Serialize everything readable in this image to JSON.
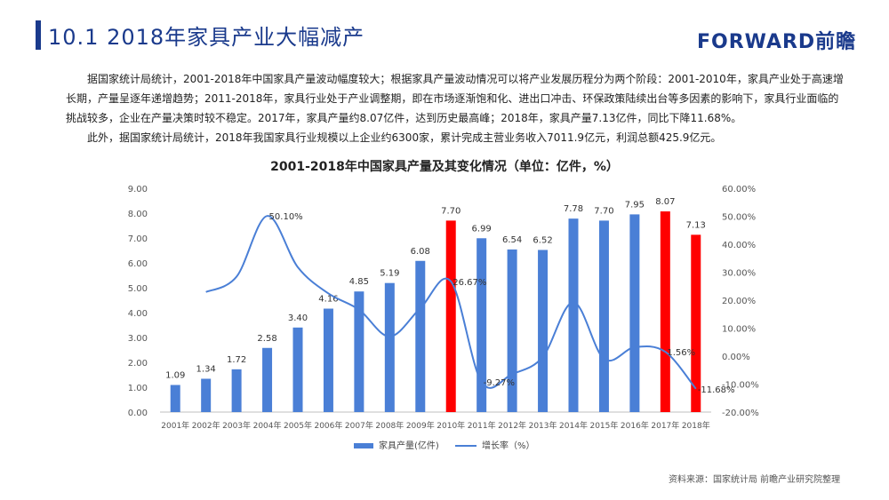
{
  "header": {
    "title": "10.1 2018年家具产业大幅减产",
    "logo": "FORWARD前瞻"
  },
  "intro": {
    "paragraph1": "据国家统计局统计，2001-2018年中国家具产量波动幅度较大；根据家具产量波动情况可以将产业发展历程分为两个阶段：2001-2010年，家具产业处于高速增长期，产量呈逐年递增趋势；2011-2018年，家具行业处于产业调整期，即在市场逐渐饱和化、进出口冲击、环保政策陆续出台等多因素的影响下，家具行业面临的挑战较多，企业在产量决策时较不稳定。2017年，家具产量约8.07亿件，达到历史最高峰；2018年，家具产量7.13亿件，同比下降11.68%。",
    "paragraph2": "此外，据国家统计局统计，2018年我国家具行业规模以上企业约6300家，累计完成主营业务收入7011.9亿元，利润总额425.9亿元。"
  },
  "chart_data": {
    "type": "bar",
    "title": "2001-2018年中国家具产量及其变化情况（单位：亿件，%）",
    "categories": [
      "2001年",
      "2002年",
      "2003年",
      "2004年",
      "2005年",
      "2006年",
      "2007年",
      "2008年",
      "2009年",
      "2010年",
      "2011年",
      "2012年",
      "2013年",
      "2014年",
      "2015年",
      "2016年",
      "2017年",
      "2018年"
    ],
    "series": [
      {
        "name": "家具产量(亿件)",
        "type": "bar",
        "axis": "left",
        "color": "#4a7fd6",
        "highlight_color": "#ff0000",
        "highlight_indices": [
          9,
          16,
          17
        ],
        "values": [
          1.09,
          1.34,
          1.72,
          2.58,
          3.4,
          4.16,
          4.85,
          5.19,
          6.08,
          7.7,
          6.99,
          6.54,
          6.52,
          7.78,
          7.7,
          7.95,
          8.07,
          7.13
        ],
        "labels": [
          "1.09",
          "1.34",
          "1.72",
          "2.58",
          "3.40",
          "4.16",
          "4.85",
          "5.19",
          "6.08",
          "7.70",
          "6.99",
          "6.54",
          "6.52",
          "7.78",
          "7.70",
          "7.95",
          "8.07",
          "7.13"
        ]
      },
      {
        "name": "增长率（%）",
        "type": "line",
        "axis": "right",
        "color": "#4a7fd6",
        "values": [
          null,
          22.9,
          28.4,
          50.1,
          31.8,
          22.4,
          16.6,
          7.0,
          17.1,
          26.7,
          -9.27,
          -6.4,
          -0.3,
          19.3,
          -1.0,
          3.2,
          1.56,
          -11.68
        ],
        "point_labels": [
          {
            "index": 3,
            "text": "50.10%"
          },
          {
            "index": 9,
            "text": "26.67%"
          },
          {
            "index": 10,
            "text": "-9.27%"
          },
          {
            "index": 16,
            "text": "1.56%"
          },
          {
            "index": 17,
            "text": "-11.68%"
          }
        ]
      }
    ],
    "y_left": {
      "min": 0,
      "max": 9,
      "ticks": [
        "0.00",
        "1.00",
        "2.00",
        "3.00",
        "4.00",
        "5.00",
        "6.00",
        "7.00",
        "8.00",
        "9.00"
      ]
    },
    "y_right": {
      "min": -20,
      "max": 60,
      "ticks": [
        "-20.00%",
        "-10.00%",
        "0.00%",
        "10.00%",
        "20.00%",
        "30.00%",
        "40.00%",
        "50.00%",
        "60.00%"
      ]
    },
    "legend": {
      "position": "bottom",
      "bar_label": "家具产量(亿件)",
      "line_label": "增长率（%）"
    },
    "grid": false
  },
  "footer": {
    "source": "资料来源：国家统计局  前瞻产业研究院整理"
  }
}
